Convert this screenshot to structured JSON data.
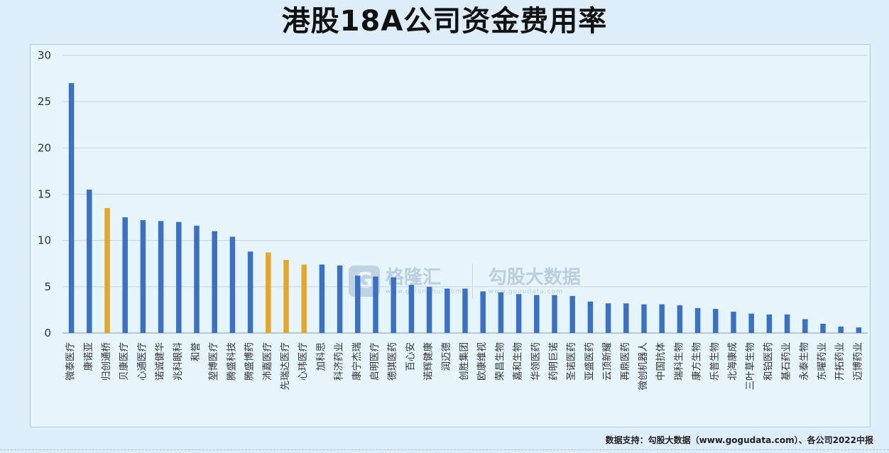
{
  "title": "港股18A公司资金费用率",
  "source": "数据支持：勾股大数据（www.gogudata.com）、各公司2022中报",
  "watermark": {
    "logo_glyph": "G",
    "brand_a": "格隆汇",
    "brand_a_url": "www.gelonghui.com",
    "brand_b": "勾股大数据",
    "brand_b_url": "www.gogudata.com"
  },
  "chart_data": {
    "type": "bar",
    "title": "港股18A公司资金费用率",
    "ylim": [
      0,
      30
    ],
    "yticks": [
      0,
      5,
      10,
      15,
      20,
      25,
      30
    ],
    "grid": true,
    "colors": {
      "default": "#3a71c4",
      "highlight": "#e6a62a"
    },
    "categories": [
      "微泰医疗",
      "康诺亚",
      "归创通桥",
      "贝康医疗",
      "心通医疗",
      "诺诚健华",
      "兆科眼科",
      "和誉",
      "堃博医疗",
      "腾盛科技",
      "腾盛博药",
      "沛嘉医疗",
      "先瑞达医疗",
      "心玮医疗",
      "加科思",
      "科济药业",
      "康宁杰瑞",
      "启明医疗",
      "德琪医药",
      "百心安",
      "诺辉健康",
      "润迈德",
      "创胜集团",
      "欧康维视",
      "荣昌生物",
      "嘉和生物",
      "华领医药",
      "药明巨诺",
      "圣诺医药",
      "亚盛医药",
      "云顶新耀",
      "再鼎医药",
      "微创机器人",
      "中国抗体",
      "瑞科生物",
      "康方生物",
      "乐普生物",
      "北海康成",
      "三叶草生物",
      "和铂医药",
      "基石药业",
      "永泰生物",
      "东曜药业",
      "开拓药业",
      "迈博药业"
    ],
    "values": [
      27.0,
      15.5,
      13.5,
      12.5,
      12.2,
      12.1,
      12.0,
      11.6,
      11.0,
      10.4,
      8.8,
      8.7,
      7.9,
      7.4,
      7.4,
      7.3,
      6.2,
      6.1,
      6.0,
      5.2,
      5.0,
      4.8,
      4.8,
      4.5,
      4.4,
      4.2,
      4.1,
      4.1,
      4.0,
      3.4,
      3.2,
      3.2,
      3.1,
      3.1,
      3.0,
      2.7,
      2.6,
      2.3,
      2.1,
      2.0,
      2.0,
      1.5,
      1.0,
      0.7,
      0.6
    ],
    "highlight": [
      "归创通桥",
      "沛嘉医疗",
      "先瑞达医疗",
      "心玮医疗"
    ]
  }
}
